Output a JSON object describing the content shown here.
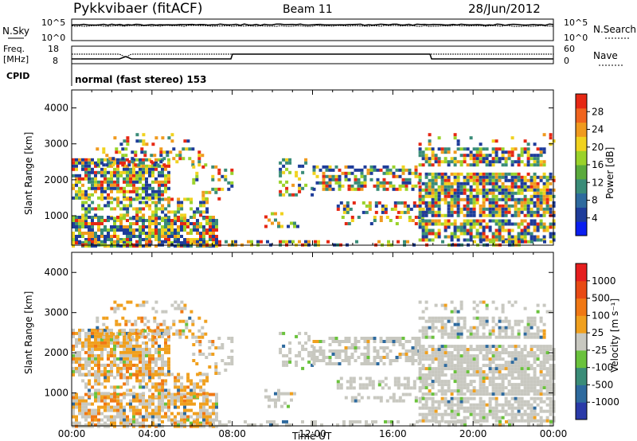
{
  "header": {
    "station": "Pykkvibaer (fitACF)",
    "beam": "Beam 11",
    "date": "28/Jun/2012"
  },
  "panels": {
    "noise": {
      "left_label": "N.Sky",
      "right_label": "N.Search",
      "left_ticks": [
        "10^5",
        "10^0"
      ],
      "right_ticks": [
        "10^5",
        "10^0"
      ]
    },
    "freq": {
      "left_label_1": "Freq.",
      "left_label_2": "[MHz]",
      "right_label": "Nave",
      "left_ticks": [
        "18",
        "8"
      ],
      "right_ticks": [
        "60",
        "0"
      ]
    },
    "cpid": {
      "label": "CPID",
      "value": "normal (fast stereo) 153"
    }
  },
  "chart_data": [
    {
      "type": "heatmap",
      "title": "",
      "ylabel": "Slant Range [km]",
      "xlabel": "",
      "ylim": [
        180,
        4500
      ],
      "yticks": [
        "4000",
        "3000",
        "2000",
        "1000"
      ],
      "colorbar": {
        "label": "Power [dB]",
        "ticks": [
          "28",
          "24",
          "20",
          "16",
          "12",
          "8",
          "4"
        ],
        "colors": [
          "#0a1ef0",
          "#1e3c9a",
          "#2e6a9e",
          "#3a8c78",
          "#5aaa3c",
          "#9ad22a",
          "#f0d21e",
          "#f09a1e",
          "#f0641e",
          "#e62814"
        ]
      }
    },
    {
      "type": "heatmap",
      "title": "",
      "ylabel": "Slant Range [km]",
      "xlabel": "Time UT",
      "ylim": [
        180,
        4500
      ],
      "yticks": [
        "4000",
        "3000",
        "2000",
        "1000"
      ],
      "xticks": [
        "00:00",
        "04:00",
        "08:00",
        "12:00",
        "16:00",
        "20:00",
        "00:00"
      ],
      "colorbar": {
        "label": "Velocity [m s⁻¹]",
        "ticks": [
          "1000",
          "500",
          "100",
          "25",
          "-25",
          "-100",
          "-500",
          "-1000"
        ],
        "colors": [
          "#2a3aa8",
          "#2e6a9e",
          "#3a8c78",
          "#6ac23c",
          "#c8c8c0",
          "#f0a01e",
          "#f07814",
          "#e84a14",
          "#e61e1e"
        ]
      }
    }
  ]
}
